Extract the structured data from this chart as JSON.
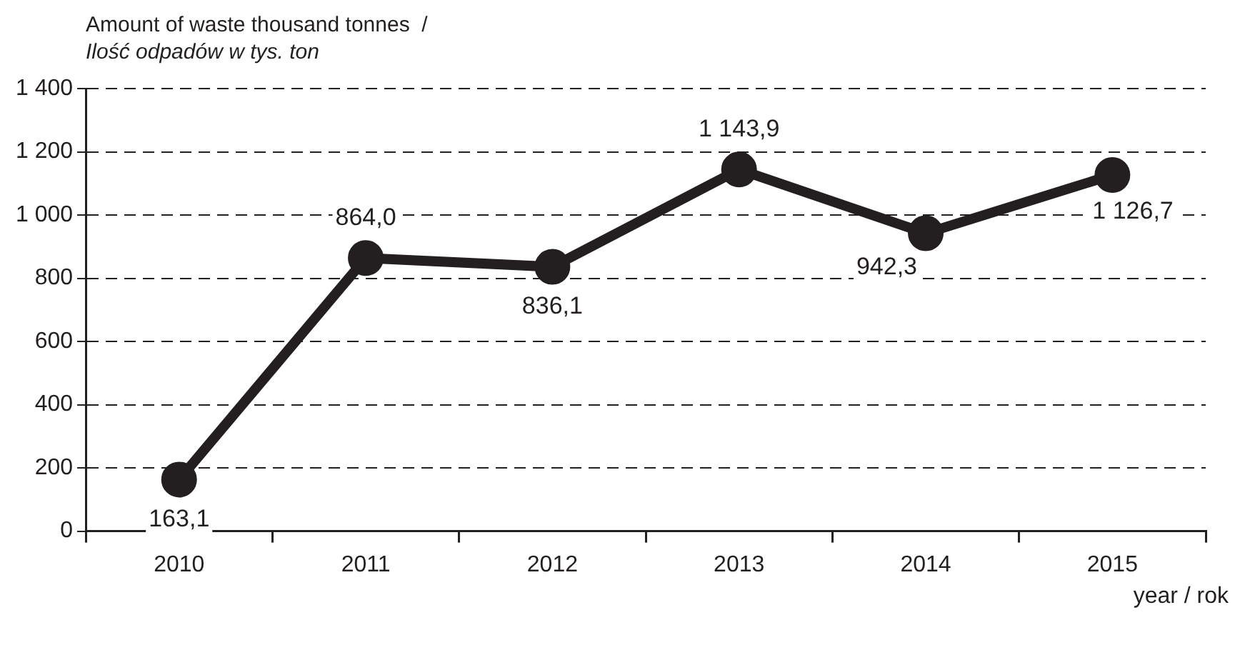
{
  "chart_data": {
    "type": "line",
    "ylabel": "Amount of waste thousand tonnes  /\nIlość odpadów w tys. ton",
    "xlabel": "year / rok",
    "categories": [
      "2010",
      "2011",
      "2012",
      "2013",
      "2014",
      "2015"
    ],
    "series": [
      {
        "color": "#231f20",
        "values": [
          163.1,
          864.0,
          836.1,
          1143.9,
          942.3,
          1126.7
        ],
        "value_labels": [
          "163,1",
          "864,0",
          "836,1",
          "1 143,9",
          "942,3",
          "1 126,7"
        ]
      }
    ],
    "ylim": [
      0,
      1400
    ],
    "yticks": [
      0,
      200,
      400,
      600,
      800,
      {
        "value": 1000,
        "label": "1 000"
      },
      {
        "value": 1200,
        "label": "1 200"
      },
      {
        "value": 1400,
        "label": "1 400"
      }
    ],
    "grid": "y",
    "legend": false,
    "marker": "circle",
    "line_style": "solid"
  }
}
